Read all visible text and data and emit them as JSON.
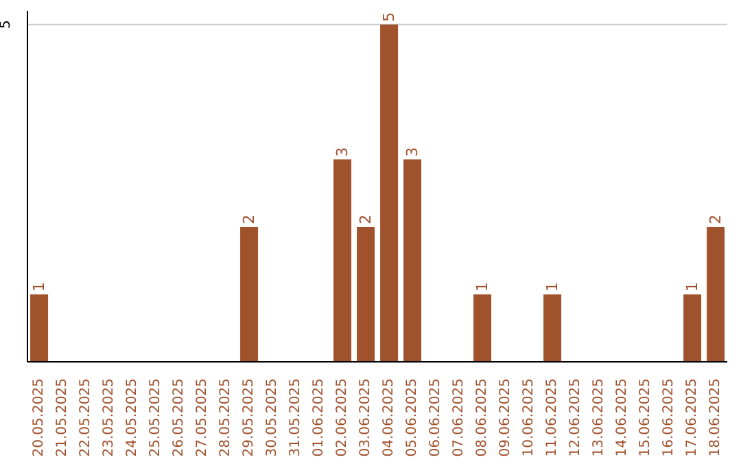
{
  "chart_data": {
    "type": "bar",
    "categories": [
      "20.05.2025",
      "21.05.2025",
      "22.05.2025",
      "23.05.2025",
      "24.05.2025",
      "25.05.2025",
      "26.05.2025",
      "27.05.2025",
      "28.05.2025",
      "29.05.2025",
      "30.05.2025",
      "31.05.2025",
      "01.06.2025",
      "02.06.2025",
      "03.06.2025",
      "04.06.2025",
      "05.06.2025",
      "06.06.2025",
      "07.06.2025",
      "08.06.2025",
      "09.06.2025",
      "10.06.2025",
      "11.06.2025",
      "12.06.2025",
      "13.06.2025",
      "14.06.2025",
      "15.06.2025",
      "16.06.2025",
      "17.06.2025",
      "18.06.2025"
    ],
    "values": [
      1,
      null,
      null,
      null,
      null,
      null,
      null,
      null,
      null,
      2,
      null,
      null,
      null,
      3,
      2,
      5,
      3,
      null,
      null,
      1,
      null,
      null,
      1,
      null,
      null,
      null,
      null,
      null,
      1,
      2
    ],
    "color": "#a0522d",
    "ylim": [
      0,
      5.2
    ],
    "yticks": [
      5
    ],
    "grid": "y",
    "data_labels": true,
    "legend": false
  }
}
